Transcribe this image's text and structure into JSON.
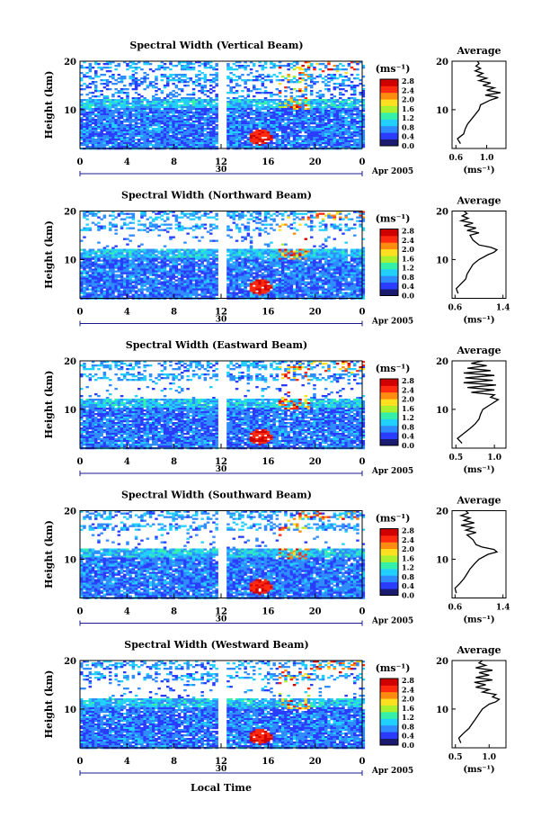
{
  "chart_data": {
    "type": "heatmap",
    "date_label": "Apr 2005",
    "day_label": "30",
    "xlabel": "Local Time",
    "ylabel": "Height (km)",
    "x_ticks": [
      "0",
      "4",
      "8",
      "12",
      "16",
      "20",
      "0"
    ],
    "y_ticks": [
      "10",
      "20"
    ],
    "xlim": [
      0,
      24
    ],
    "ylim": [
      2,
      20
    ],
    "colorbar": {
      "unit": "(ms⁻¹)",
      "ticks": [
        "0.0",
        "0.4",
        "0.8",
        "1.2",
        "1.6",
        "2.0",
        "2.4",
        "2.8"
      ],
      "range": [
        0.0,
        2.8
      ],
      "colors": [
        "#1a1a6e",
        "#2a3cff",
        "#2f8cff",
        "#22d0ff",
        "#34f0a8",
        "#a8f030",
        "#ffe020",
        "#ff8c10",
        "#ff2a10",
        "#d00000"
      ]
    },
    "average_title": "Average",
    "average_xlabel": "(ms⁻¹)",
    "panels": [
      {
        "title": "Spectral Width (Vertical Beam)",
        "avg_ticks": [
          "0.6",
          "1.0"
        ],
        "avg_range": [
          0.55,
          1.25
        ],
        "avg_profile": {
          "height": [
            3,
            4,
            5,
            6,
            7,
            8,
            9,
            10,
            11,
            12,
            12.5,
            13,
            13.5,
            14,
            14.5,
            15,
            15.5,
            16,
            16.5,
            17,
            17.5,
            18,
            18.5,
            19,
            19.5,
            20
          ],
          "width": [
            0.66,
            0.62,
            0.7,
            0.72,
            0.75,
            0.8,
            0.85,
            0.9,
            0.92,
            1.05,
            1.15,
            0.98,
            1.18,
            1.0,
            1.1,
            0.95,
            1.05,
            0.9,
            1.0,
            0.88,
            0.95,
            0.85,
            0.92,
            0.86,
            0.9,
            0.88
          ]
        }
      },
      {
        "title": "Spectral Width (Northward Beam)",
        "avg_ticks": [
          "0.6",
          "1.4"
        ],
        "avg_range": [
          0.55,
          1.45
        ],
        "avg_profile": {
          "height": [
            3,
            4,
            5,
            6,
            7,
            8,
            9,
            10,
            11,
            11.5,
            12,
            12.5,
            13,
            14,
            15,
            15.5,
            16,
            16.5,
            17,
            17.5,
            18,
            18.5,
            19,
            19.5,
            20
          ],
          "width": [
            0.65,
            0.62,
            0.7,
            0.78,
            0.8,
            0.85,
            0.9,
            1.0,
            1.15,
            1.25,
            1.3,
            1.2,
            1.0,
            0.9,
            0.85,
            1.0,
            0.8,
            0.95,
            0.75,
            0.9,
            0.7,
            0.82,
            0.72,
            0.8,
            0.75
          ]
        }
      },
      {
        "title": "Spectral Width (Eastward Beam)",
        "avg_ticks": [
          "0.5",
          "1.0"
        ],
        "avg_range": [
          0.45,
          1.15
        ],
        "avg_profile": {
          "height": [
            3,
            4,
            5,
            6,
            7,
            8,
            9,
            10,
            11,
            11.5,
            12,
            12.5,
            13,
            13.5,
            14,
            14.5,
            15,
            15.5,
            16,
            16.5,
            17,
            17.5,
            18,
            18.5,
            19,
            19.5,
            20
          ],
          "width": [
            0.58,
            0.52,
            0.6,
            0.68,
            0.75,
            0.8,
            0.82,
            0.85,
            0.95,
            1.0,
            1.05,
            0.95,
            1.0,
            0.7,
            1.0,
            0.65,
            1.02,
            0.6,
            0.98,
            0.62,
            1.0,
            0.6,
            0.95,
            0.65,
            0.9,
            0.7,
            0.85
          ]
        }
      },
      {
        "title": "Spectral Width (Southward Beam)",
        "avg_ticks": [
          "0.6",
          "1.4"
        ],
        "avg_range": [
          0.55,
          1.45
        ],
        "avg_profile": {
          "height": [
            3,
            4,
            5,
            6,
            7,
            8,
            9,
            10,
            11,
            11.5,
            12,
            12.5,
            13,
            14,
            15,
            15.5,
            16,
            16.5,
            17,
            17.5,
            18,
            18.5,
            19,
            19.5,
            20
          ],
          "width": [
            0.62,
            0.6,
            0.68,
            0.75,
            0.8,
            0.85,
            0.92,
            1.0,
            1.15,
            1.3,
            1.25,
            1.05,
            0.95,
            0.9,
            0.8,
            0.95,
            0.78,
            0.9,
            0.7,
            0.92,
            0.75,
            0.85,
            0.7,
            0.82,
            0.78
          ]
        }
      },
      {
        "title": "Spectral Width (Westward Beam)",
        "avg_ticks": [
          "0.5",
          "1.0"
        ],
        "avg_range": [
          0.45,
          1.25
        ],
        "avg_profile": {
          "height": [
            3,
            4,
            5,
            6,
            7,
            8,
            9,
            10,
            11,
            11.5,
            12,
            12.5,
            13,
            13.5,
            14,
            14.5,
            15,
            15.5,
            16,
            16.5,
            17,
            17.5,
            18,
            18.5,
            19,
            19.5,
            20
          ],
          "width": [
            0.58,
            0.55,
            0.62,
            0.7,
            0.75,
            0.8,
            0.85,
            0.9,
            1.0,
            1.1,
            1.15,
            1.05,
            1.1,
            0.9,
            1.0,
            0.8,
            0.95,
            0.78,
            1.05,
            0.8,
            1.0,
            0.85,
            1.05,
            0.8,
            0.95,
            0.85,
            0.9
          ]
        }
      }
    ]
  }
}
